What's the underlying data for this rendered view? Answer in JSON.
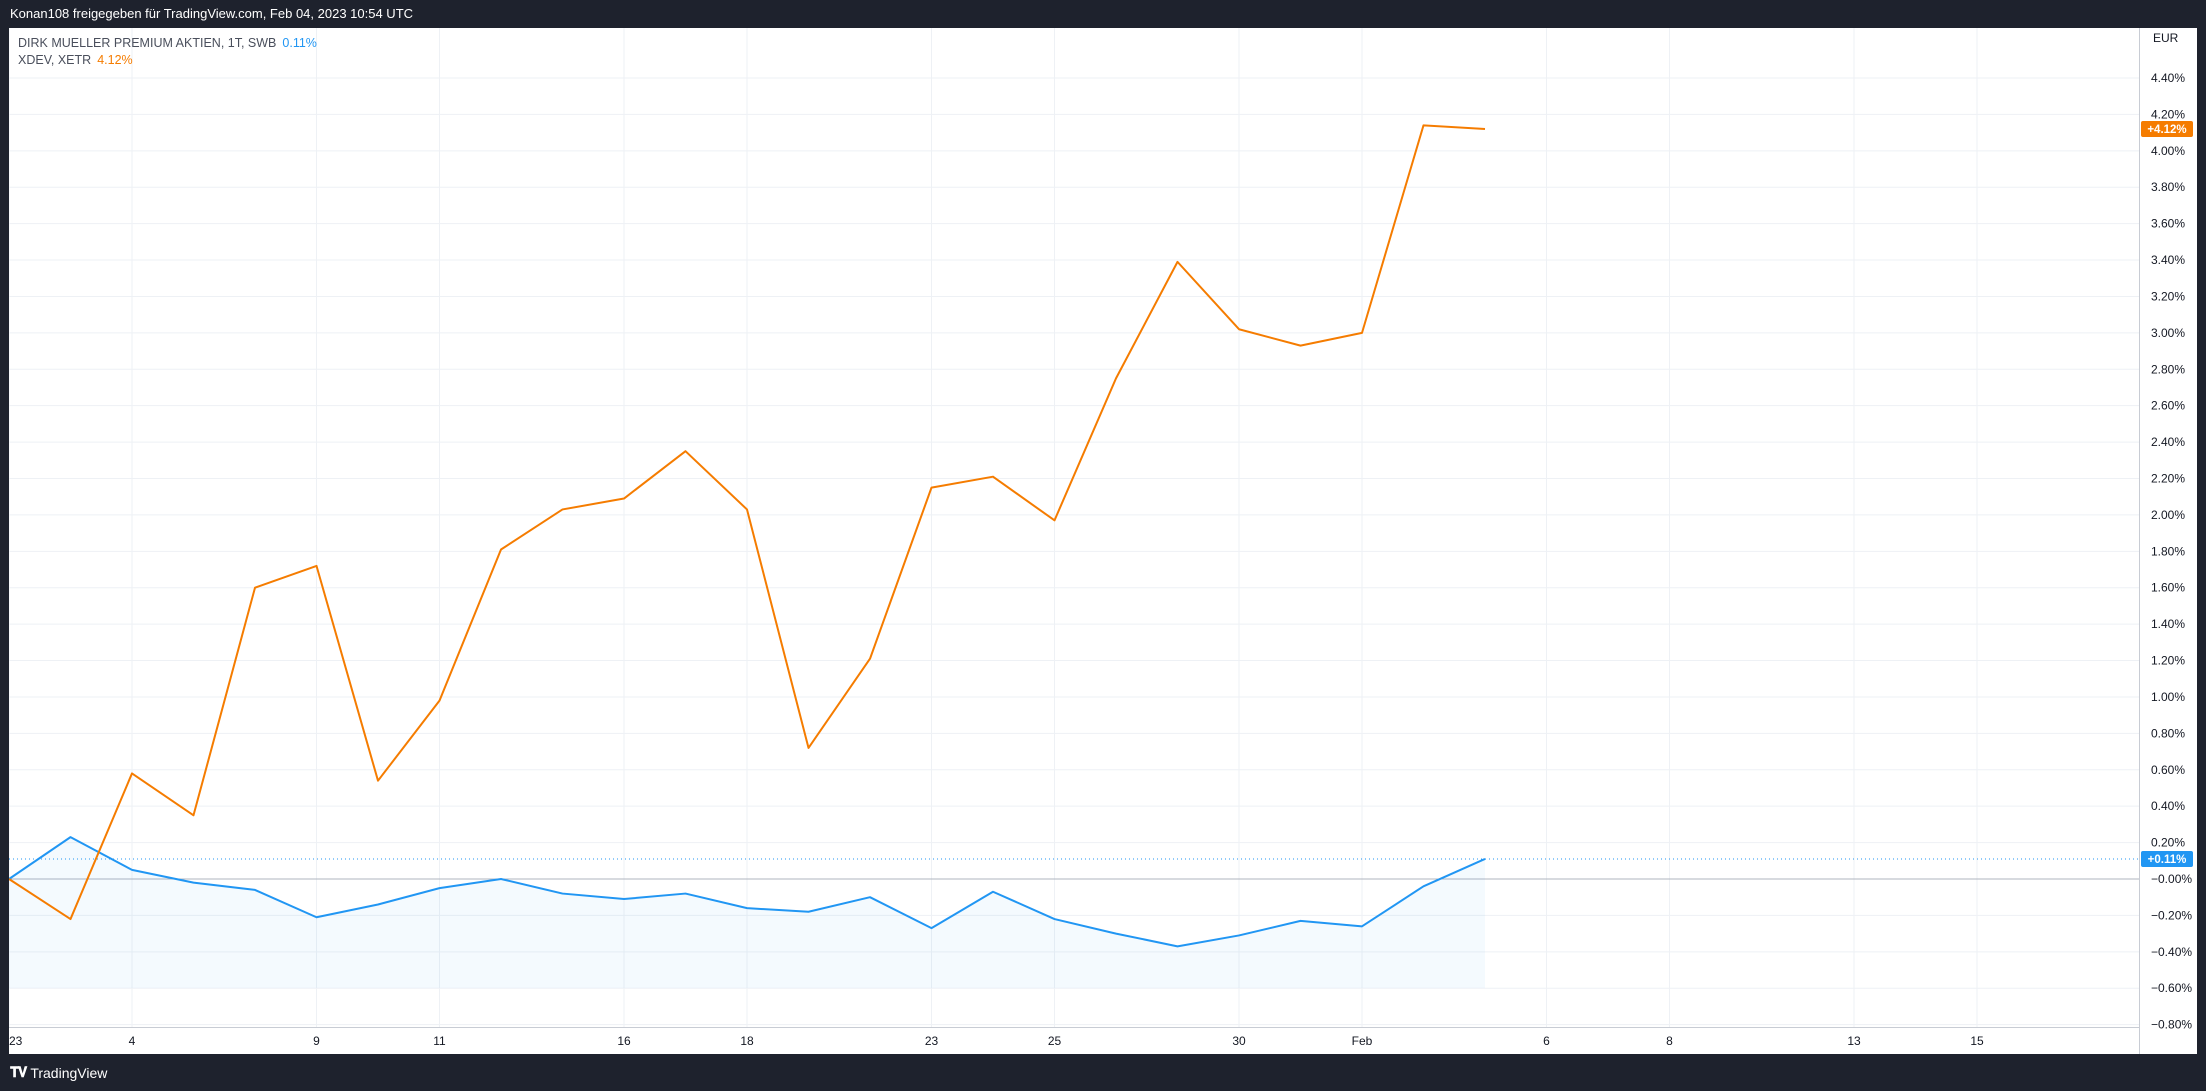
{
  "header": {
    "text": "Konan108 freigegeben für TradingView.com, Feb 04, 2023 10:54 UTC"
  },
  "legend": {
    "items": [
      {
        "label": "DIRK MUELLER PREMIUM AKTIEN, 1T, SWB",
        "value": "0.11%",
        "color": "#2196f3"
      },
      {
        "label": "XDEV, XETR",
        "value": "4.12%",
        "color": "#f57c00"
      }
    ]
  },
  "footer": {
    "logo_text": "TradingView"
  },
  "chart_data": {
    "type": "line",
    "currency_label": "EUR",
    "y_unit": "%",
    "ylim": [
      -0.8,
      4.6
    ],
    "y_ticks": [
      {
        "v": 4.4,
        "label": "4.40%"
      },
      {
        "v": 4.2,
        "label": "4.20%"
      },
      {
        "v": 4.0,
        "label": "4.00%"
      },
      {
        "v": 3.8,
        "label": "3.80%"
      },
      {
        "v": 3.6,
        "label": "3.60%"
      },
      {
        "v": 3.4,
        "label": "3.40%"
      },
      {
        "v": 3.2,
        "label": "3.20%"
      },
      {
        "v": 3.0,
        "label": "3.00%"
      },
      {
        "v": 2.8,
        "label": "2.80%"
      },
      {
        "v": 2.6,
        "label": "2.60%"
      },
      {
        "v": 2.4,
        "label": "2.40%"
      },
      {
        "v": 2.2,
        "label": "2.20%"
      },
      {
        "v": 2.0,
        "label": "2.00%"
      },
      {
        "v": 1.8,
        "label": "1.80%"
      },
      {
        "v": 1.6,
        "label": "1.60%"
      },
      {
        "v": 1.4,
        "label": "1.40%"
      },
      {
        "v": 1.2,
        "label": "1.20%"
      },
      {
        "v": 1.0,
        "label": "1.00%"
      },
      {
        "v": 0.8,
        "label": "0.80%"
      },
      {
        "v": 0.6,
        "label": "0.60%"
      },
      {
        "v": 0.4,
        "label": "0.40%"
      },
      {
        "v": 0.2,
        "label": "0.20%"
      },
      {
        "v": 0.0,
        "label": "−0.00%"
      },
      {
        "v": -0.2,
        "label": "−0.20%"
      },
      {
        "v": -0.4,
        "label": "−0.40%"
      },
      {
        "v": -0.6,
        "label": "−0.60%"
      },
      {
        "v": -0.8,
        "label": "−0.80%"
      }
    ],
    "x_ticks": [
      {
        "i": 0,
        "label": "23"
      },
      {
        "i": 2,
        "label": "4"
      },
      {
        "i": 5,
        "label": "9"
      },
      {
        "i": 7,
        "label": "11"
      },
      {
        "i": 10,
        "label": "16"
      },
      {
        "i": 12,
        "label": "18"
      },
      {
        "i": 15,
        "label": "23"
      },
      {
        "i": 17,
        "label": "25"
      },
      {
        "i": 20,
        "label": "30"
      },
      {
        "i": 22,
        "label": "Feb"
      },
      {
        "i": 25,
        "label": "6"
      },
      {
        "i": 27,
        "label": "8"
      },
      {
        "i": 30,
        "label": "13"
      },
      {
        "i": 32,
        "label": "15"
      }
    ],
    "x_range": [
      0,
      34.5
    ],
    "series": [
      {
        "name": "XDEV, XETR",
        "color": "#f57c00",
        "last_label": "+4.12%",
        "values": [
          0.0,
          -0.22,
          0.58,
          0.35,
          1.6,
          1.72,
          0.54,
          0.98,
          1.81,
          2.03,
          2.09,
          2.35,
          2.03,
          0.72,
          1.21,
          2.15,
          2.21,
          1.97,
          2.75,
          3.39,
          3.02,
          2.93,
          3.0,
          4.14,
          4.12
        ]
      },
      {
        "name": "DIRK MUELLER PREMIUM AKTIEN, 1T, SWB",
        "color": "#2196f3",
        "last_label": "+0.11%",
        "values": [
          0.0,
          0.23,
          0.05,
          -0.02,
          -0.06,
          -0.21,
          -0.14,
          -0.05,
          0.0,
          -0.08,
          -0.11,
          -0.08,
          -0.16,
          -0.18,
          -0.1,
          -0.27,
          -0.07,
          -0.22,
          -0.3,
          -0.37,
          -0.31,
          -0.23,
          -0.26,
          -0.04,
          0.11
        ]
      }
    ],
    "grid": true
  }
}
